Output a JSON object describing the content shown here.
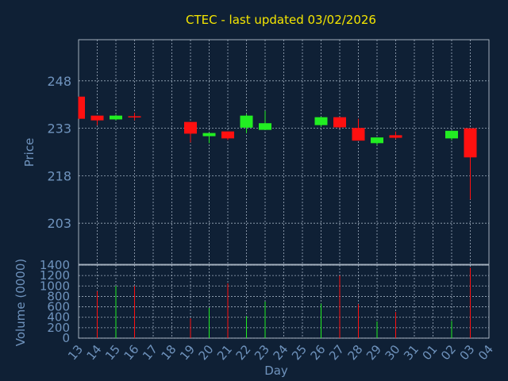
{
  "chart_data": {
    "type": "candlestick",
    "title": "CTEC - last updated 03/02/2026",
    "price_panel": {
      "ylabel": "Price",
      "ylim": [
        190,
        261
      ],
      "yticks": [
        "203",
        "218",
        "233",
        "248"
      ],
      "grid": true
    },
    "volume_panel": {
      "ylabel": "Volume (0000)",
      "ylim": [
        0,
        1400
      ],
      "yticks": [
        "0",
        "200",
        "400",
        "600",
        "800",
        "1000",
        "1200",
        "1400"
      ],
      "grid": true
    },
    "xlabel": "Day",
    "x_ticks": [
      "13",
      "14",
      "15",
      "16",
      "17",
      "18",
      "19",
      "20",
      "21",
      "22",
      "23",
      "24",
      "25",
      "26",
      "27",
      "28",
      "29",
      "30",
      "31",
      "01",
      "02",
      "03",
      "04"
    ],
    "candles": [
      {
        "day": "13",
        "open": 243,
        "high": 243,
        "low": 236,
        "close": 236,
        "volume": 0
      },
      {
        "day": "14",
        "open": 237,
        "high": 237,
        "low": 234,
        "close": 235.5,
        "volume": 900
      },
      {
        "day": "15",
        "open": 235.8,
        "high": 237.3,
        "low": 235.5,
        "close": 237,
        "volume": 1000
      },
      {
        "day": "16",
        "open": 236.8,
        "high": 237.9,
        "low": 235.5,
        "close": 236.5,
        "volume": 1000
      },
      {
        "day": "19",
        "open": 235,
        "high": 235,
        "low": 228.5,
        "close": 231.3,
        "volume": 380
      },
      {
        "day": "20",
        "open": 230.5,
        "high": 231.5,
        "low": 228.3,
        "close": 231.5,
        "volume": 580
      },
      {
        "day": "21",
        "open": 232,
        "high": 232,
        "low": 229.3,
        "close": 229.8,
        "volume": 1050
      },
      {
        "day": "22",
        "open": 233.2,
        "high": 237.5,
        "low": 231.5,
        "close": 237,
        "volume": 420
      },
      {
        "day": "23",
        "open": 232.5,
        "high": 238.5,
        "low": 232.5,
        "close": 234.6,
        "volume": 700
      },
      {
        "day": "26",
        "open": 234,
        "high": 236.7,
        "low": 233.5,
        "close": 236.5,
        "volume": 660
      },
      {
        "day": "27",
        "open": 236.5,
        "high": 236.5,
        "low": 233,
        "close": 233.3,
        "volume": 1200
      },
      {
        "day": "28",
        "open": 233.1,
        "high": 236,
        "low": 229.1,
        "close": 229.1,
        "volume": 650
      },
      {
        "day": "29",
        "open": 228.3,
        "high": 230.1,
        "low": 227.7,
        "close": 230.1,
        "volume": 320
      },
      {
        "day": "30",
        "open": 230.8,
        "high": 232,
        "low": 229.6,
        "close": 230,
        "volume": 500
      },
      {
        "day": "02",
        "open": 229.8,
        "high": 232.3,
        "low": 229.2,
        "close": 232.2,
        "volume": 330
      },
      {
        "day": "03",
        "open": 233,
        "high": 233,
        "low": 210.5,
        "close": 223.8,
        "volume": 1350
      }
    ],
    "colors": {
      "up": "#22ee22",
      "down": "#ff1010",
      "background": "#0f2035",
      "plot_background": "#0f2035",
      "grid": "#b8c6d6",
      "text": "#6f93bd",
      "title": "#f5e600"
    }
  }
}
